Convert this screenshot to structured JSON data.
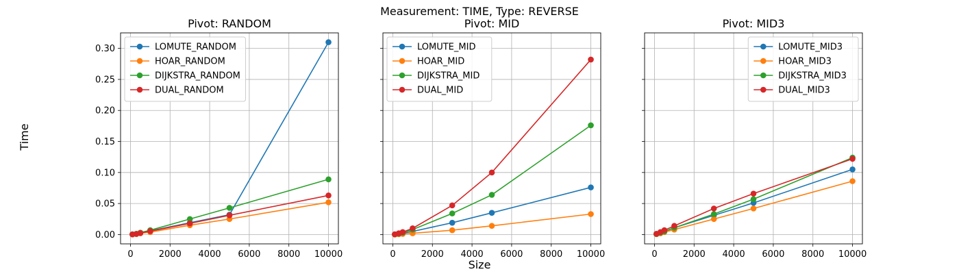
{
  "figure": {
    "suptitle": "Measurement: TIME, Type: REVERSE",
    "supxlabel": "Size",
    "supylabel": "Time"
  },
  "colors": {
    "blue": "#1f77b4",
    "orange": "#ff7f0e",
    "green": "#2ca02c",
    "red": "#d62728",
    "grid": "#b0b0b0"
  },
  "chart_data": [
    {
      "type": "line",
      "title": "Pivot: RANDOM",
      "x": [
        100,
        300,
        500,
        1000,
        3000,
        5000,
        10000
      ],
      "xlim": [
        -500,
        10500
      ],
      "ylim": [
        -0.015,
        0.325
      ],
      "xticks": [
        0,
        2000,
        4000,
        6000,
        8000,
        10000
      ],
      "yticks": [
        0.0,
        0.05,
        0.1,
        0.15,
        0.2,
        0.25,
        0.3
      ],
      "show_ytick_labels": true,
      "grid": true,
      "legend": "upper-left",
      "series": [
        {
          "name": "LOMUTE_RANDOM",
          "color": "blue",
          "values": [
            0.0003,
            0.001,
            0.0025,
            0.006,
            0.019,
            0.032,
            0.31
          ]
        },
        {
          "name": "HOAR_RANDOM",
          "color": "orange",
          "values": [
            0.0002,
            0.0008,
            0.002,
            0.004,
            0.015,
            0.025,
            0.052
          ]
        },
        {
          "name": "DIJKSTRA_RANDOM",
          "color": "green",
          "values": [
            0.0004,
            0.0012,
            0.003,
            0.007,
            0.025,
            0.043,
            0.089
          ]
        },
        {
          "name": "DUAL_RANDOM",
          "color": "red",
          "values": [
            0.0003,
            0.001,
            0.0025,
            0.0055,
            0.018,
            0.031,
            0.063
          ]
        }
      ]
    },
    {
      "type": "line",
      "title": "Pivot: MID",
      "x": [
        100,
        300,
        500,
        1000,
        3000,
        5000,
        10000
      ],
      "xlim": [
        -500,
        10500
      ],
      "ylim": [
        -0.015,
        0.325
      ],
      "xticks": [
        0,
        2000,
        4000,
        6000,
        8000,
        10000
      ],
      "yticks": [
        0.0,
        0.05,
        0.1,
        0.15,
        0.2,
        0.25,
        0.3
      ],
      "show_ytick_labels": false,
      "grid": true,
      "legend": "upper-left",
      "series": [
        {
          "name": "LOMUTE_MID",
          "color": "blue",
          "values": [
            0.0002,
            0.001,
            0.002,
            0.005,
            0.019,
            0.035,
            0.076
          ]
        },
        {
          "name": "HOAR_MID",
          "color": "orange",
          "values": [
            0.0001,
            0.0005,
            0.001,
            0.002,
            0.007,
            0.014,
            0.033
          ]
        },
        {
          "name": "DIJKSTRA_MID",
          "color": "green",
          "values": [
            0.0003,
            0.0015,
            0.003,
            0.008,
            0.034,
            0.064,
            0.176
          ]
        },
        {
          "name": "DUAL_MID",
          "color": "red",
          "values": [
            0.0004,
            0.002,
            0.004,
            0.01,
            0.047,
            0.1,
            0.282
          ]
        }
      ]
    },
    {
      "type": "line",
      "title": "Pivot: MID3",
      "x": [
        100,
        300,
        500,
        1000,
        3000,
        5000,
        10000
      ],
      "xlim": [
        -500,
        10500
      ],
      "ylim": [
        -0.015,
        0.325
      ],
      "xticks": [
        0,
        2000,
        4000,
        6000,
        8000,
        10000
      ],
      "yticks": [
        0.0,
        0.05,
        0.1,
        0.15,
        0.2,
        0.25,
        0.3
      ],
      "show_ytick_labels": false,
      "grid": true,
      "legend": "upper-right",
      "series": [
        {
          "name": "LOMUTE_MID3",
          "color": "blue",
          "values": [
            0.0008,
            0.003,
            0.005,
            0.011,
            0.031,
            0.051,
            0.105
          ]
        },
        {
          "name": "HOAR_MID3",
          "color": "orange",
          "values": [
            0.0006,
            0.002,
            0.004,
            0.008,
            0.025,
            0.042,
            0.086
          ]
        },
        {
          "name": "DIJKSTRA_MID3",
          "color": "green",
          "values": [
            0.0009,
            0.003,
            0.005,
            0.011,
            0.033,
            0.057,
            0.124
          ]
        },
        {
          "name": "DUAL_MID3",
          "color": "red",
          "values": [
            0.0012,
            0.004,
            0.007,
            0.014,
            0.042,
            0.066,
            0.122
          ]
        }
      ]
    }
  ]
}
